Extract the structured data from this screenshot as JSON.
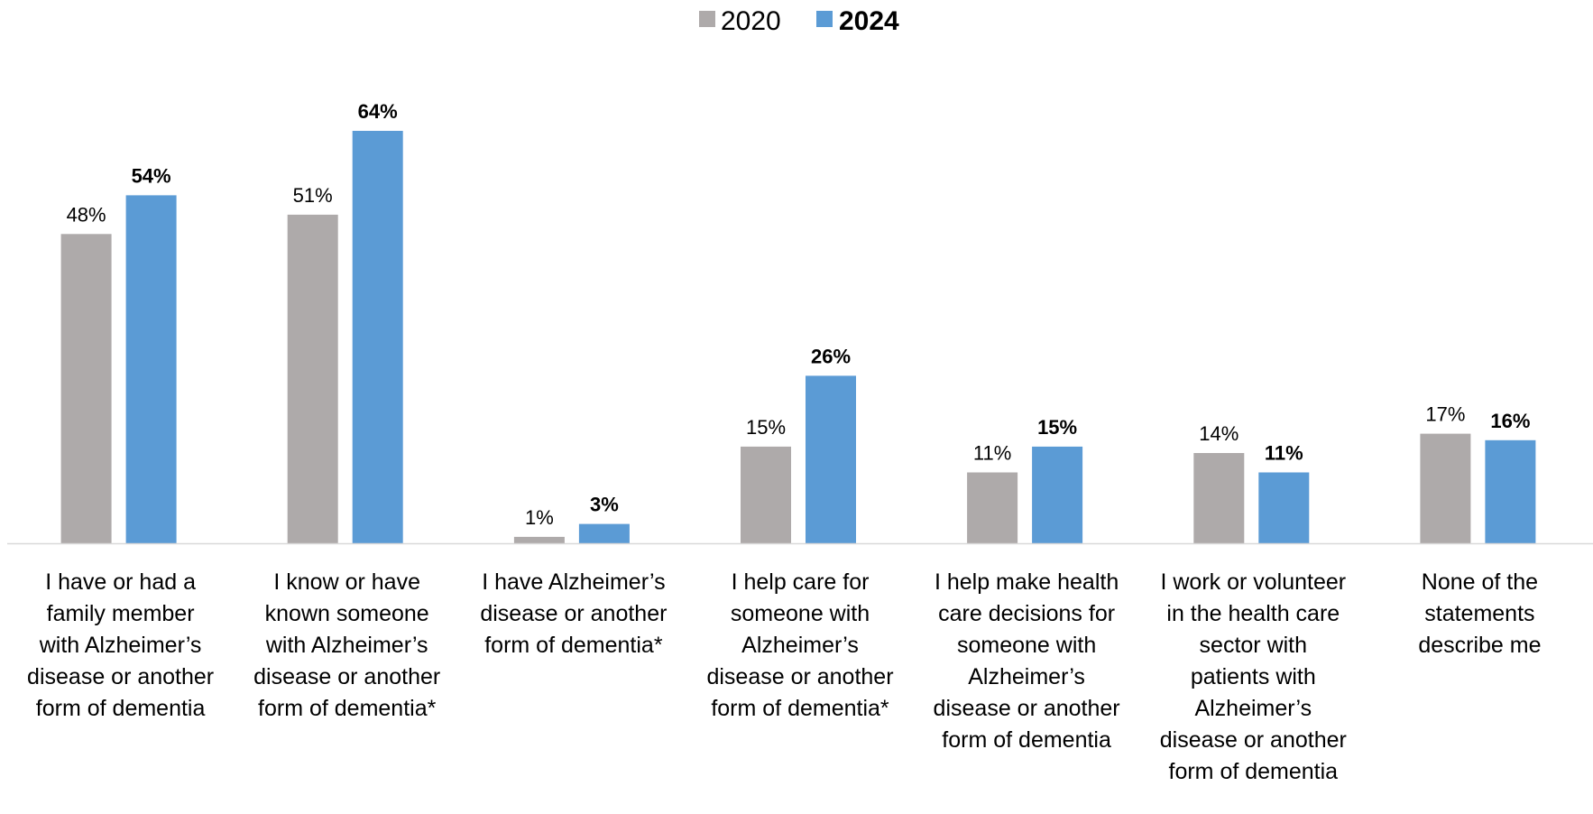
{
  "chart_data": {
    "type": "bar",
    "categories": [
      [
        "I have or had a",
        "family member",
        "with Alzheimer’s",
        "disease or another",
        "form of dementia"
      ],
      [
        "I know or have",
        "known someone",
        "with Alzheimer’s",
        "disease or another",
        "form of dementia*"
      ],
      [
        "I have Alzheimer’s",
        "disease or another",
        "form of dementia*"
      ],
      [
        "I help care for",
        "someone with",
        "Alzheimer’s",
        "disease or another",
        "form of dementia*"
      ],
      [
        "I help make health",
        "care decisions for",
        "someone with",
        "Alzheimer’s",
        "disease or another",
        "form of dementia"
      ],
      [
        "I work or volunteer",
        "in the health care",
        "sector with",
        "patients with",
        "Alzheimer’s",
        "disease or another",
        "form of dementia"
      ],
      [
        "None of the",
        "statements",
        "describe me"
      ]
    ],
    "series": [
      {
        "name": "2020",
        "values": [
          48,
          51,
          1,
          15,
          11,
          14,
          17
        ],
        "labels": [
          "48%",
          "51%",
          "1%",
          "15%",
          "11%",
          "14%",
          "17%"
        ],
        "color": "#aeaaaa",
        "label_bold": false
      },
      {
        "name": "2024",
        "values": [
          54,
          64,
          3,
          26,
          15,
          11,
          16
        ],
        "labels": [
          "54%",
          "64%",
          "3%",
          "26%",
          "15%",
          "11%",
          "16%"
        ],
        "color": "#5b9bd5",
        "label_bold": true
      }
    ],
    "ylim": [
      0,
      70
    ],
    "grid": false,
    "legend": "top-center",
    "axis_color": "#d9d9d9"
  }
}
